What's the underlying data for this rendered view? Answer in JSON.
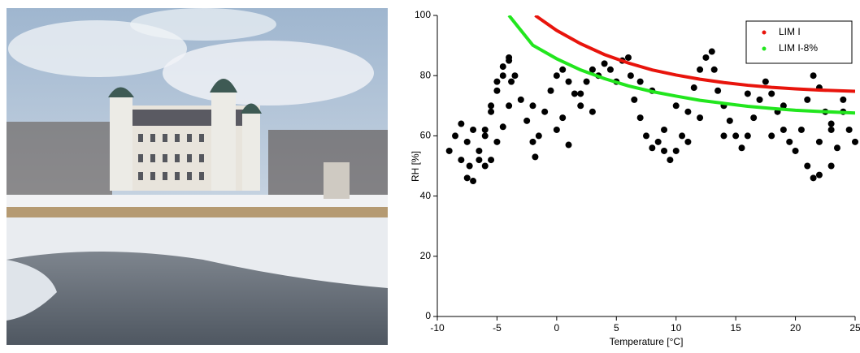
{
  "chart_data": {
    "type": "scatter",
    "xlabel": "Temperature [°C]",
    "ylabel": "RH [%]",
    "xlim": [
      -10,
      25
    ],
    "xticks": [
      -10,
      -5,
      0,
      5,
      10,
      15,
      20,
      25
    ],
    "ylim": [
      0,
      100
    ],
    "yticks": [
      0,
      20,
      40,
      60,
      80,
      100
    ],
    "legend": "upper right",
    "series": [
      {
        "type": "scatter",
        "color": "#000000",
        "x": [
          -9,
          -8.5,
          -8,
          -7.5,
          -7.3,
          -7.5,
          -7,
          -6.5,
          -6,
          -5.5,
          -5,
          -4.5,
          -4,
          -3.8,
          -4,
          -4.5,
          -5,
          -5.5,
          -6,
          -6.5,
          -6,
          -5.5,
          -5,
          -4.5,
          -4,
          -3.5,
          -3,
          -2.5,
          -2,
          -1.8,
          -1.5,
          -1,
          -0.5,
          0,
          0.5,
          1,
          1.5,
          2,
          2.5,
          3,
          3.5,
          4,
          4.5,
          5,
          5.5,
          6,
          6.2,
          6.5,
          7,
          7.5,
          8,
          8.5,
          9,
          9.5,
          10,
          10.5,
          11,
          11.5,
          12,
          12.5,
          13,
          13.2,
          13.5,
          14,
          14.5,
          15,
          15.5,
          16,
          16.5,
          17,
          17.5,
          18,
          18.5,
          19,
          19.5,
          20,
          20.5,
          21,
          21.5,
          22,
          22.5,
          23,
          23.5,
          23,
          22,
          21.5,
          21,
          22,
          23,
          24,
          24.5,
          25,
          -8,
          -7,
          -2,
          0,
          1,
          0.5,
          2,
          3,
          7,
          8,
          9,
          10,
          11,
          12,
          14,
          16,
          18,
          19,
          24
        ],
        "values": [
          55,
          60,
          64,
          58,
          50,
          46,
          45,
          52,
          60,
          68,
          75,
          80,
          85,
          78,
          70,
          63,
          58,
          52,
          50,
          55,
          62,
          70,
          78,
          83,
          86,
          80,
          72,
          65,
          58,
          53,
          60,
          68,
          75,
          80,
          82,
          78,
          74,
          70,
          78,
          82,
          80,
          84,
          82,
          78,
          85,
          86,
          80,
          72,
          66,
          60,
          56,
          58,
          55,
          52,
          55,
          60,
          68,
          76,
          82,
          86,
          88,
          82,
          75,
          70,
          65,
          60,
          56,
          60,
          66,
          72,
          78,
          74,
          68,
          62,
          58,
          55,
          62,
          72,
          80,
          76,
          68,
          62,
          56,
          50,
          47,
          46,
          50,
          58,
          64,
          68,
          62,
          58,
          52,
          62,
          70,
          62,
          57,
          66,
          74,
          68,
          78,
          75,
          62,
          70,
          58,
          66,
          60,
          74,
          60,
          70,
          72
        ]
      },
      {
        "type": "line",
        "name": "LIM I",
        "color": "#e8140c",
        "x": [
          -1.8,
          0,
          2,
          4,
          6,
          8,
          10,
          12,
          14,
          16,
          18,
          20,
          22,
          25
        ],
        "values": [
          100,
          95.0,
          90.6,
          87.0,
          84.2,
          81.9,
          80.2,
          78.8,
          77.7,
          76.8,
          76.1,
          75.6,
          75.2,
          74.8
        ]
      },
      {
        "type": "line",
        "name": "LIM I-8%",
        "color": "#22e61e",
        "x": [
          -4,
          -2,
          0,
          2,
          4,
          6,
          8,
          10,
          12,
          14,
          16,
          18,
          20,
          22,
          25
        ],
        "values": [
          100,
          90.1,
          85.6,
          81.9,
          79.0,
          76.6,
          74.7,
          73.2,
          71.8,
          70.8,
          69.8,
          69.1,
          68.5,
          68.1,
          67.6
        ]
      }
    ]
  }
}
